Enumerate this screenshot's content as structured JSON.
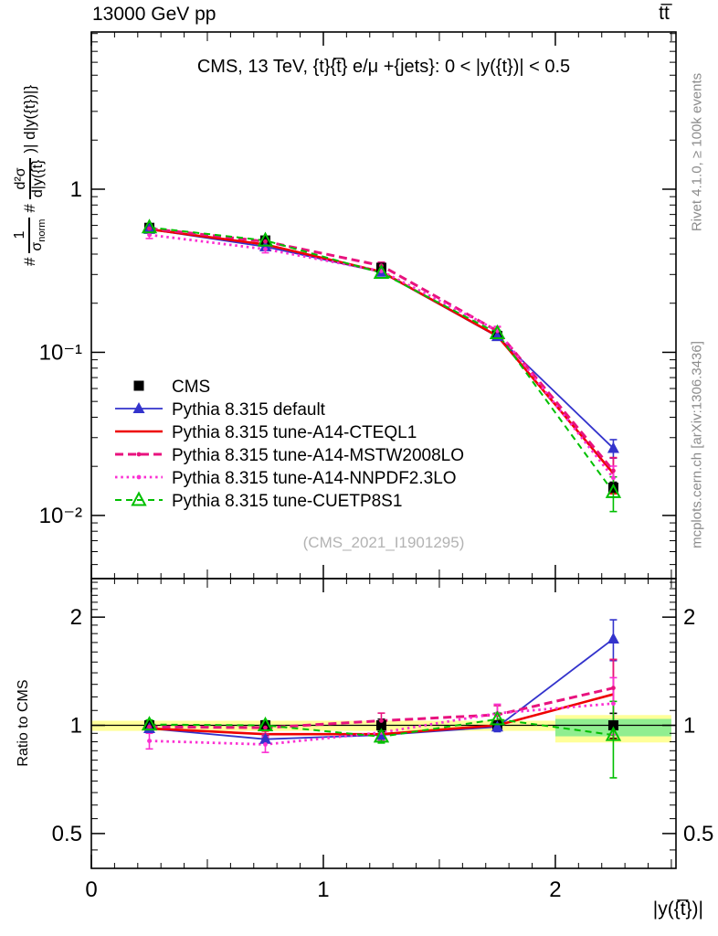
{
  "header": {
    "left_title": "13000 GeV pp",
    "right_title": "tt̅"
  },
  "side_notes": {
    "generator": "Rivet 4.1.0, ≥ 100k events",
    "source": "mcplots.cern.ch [arXiv:1306.3436]"
  },
  "y_axis_label": {
    "pre": "#",
    "frac1_num": "1",
    "frac1_den_base": "σ",
    "frac1_den_sub": "norm",
    "mid": "#",
    "frac2_num": "d²σ",
    "frac2_den": "d|y({t̅}",
    "post": ")| d|y({t})|}"
  },
  "chart_data": {
    "type": "line",
    "title": "CMS, 13 TeV, {t}{t̅} e/μ +{jets}: 0 < |y({t})| < 0.5",
    "watermark": "(CMS_2021_I1901295)",
    "xlabel": "|y({t̅})|",
    "x": [
      0.25,
      0.75,
      1.25,
      1.75,
      2.25
    ],
    "x_bin_width": 0.5,
    "xlim": [
      0,
      2.52
    ],
    "xtick_values": [
      0,
      1,
      2
    ],
    "xtick_labels": [
      "0",
      "1",
      "2"
    ],
    "main_panel": {
      "yscale": "log",
      "ylim": [
        0.0041,
        9.2
      ],
      "ytick_values": [
        1,
        0.1,
        0.01
      ],
      "ytick_labels": [
        "1",
        "10⁻¹",
        "10⁻²"
      ]
    },
    "ratio_panel": {
      "ylabel": "Ratio to CMS",
      "yscale": "log",
      "ylim": [
        0.4,
        2.56
      ],
      "ytick_values": [
        2,
        1,
        0.5
      ],
      "ytick_labels": [
        "2",
        "1",
        "0.5"
      ],
      "bands": [
        {
          "x0": 0.0,
          "x1": 2.0,
          "lo": 0.965,
          "hi": 1.03,
          "color": "#ffff99"
        },
        {
          "x0": 2.0,
          "x1": 2.5,
          "lo": 0.896,
          "hi": 1.068,
          "color": "#ffff99"
        },
        {
          "x0": 2.0,
          "x1": 2.5,
          "lo": 0.932,
          "hi": 1.042,
          "color": "#90ee90"
        }
      ]
    },
    "series": [
      {
        "name": "CMS",
        "color": "#000000",
        "line": "none",
        "width": 0,
        "marker": "square",
        "values": [
          0.58,
          0.485,
          0.33,
          0.126,
          0.0148
        ],
        "ratio": [
          1,
          1,
          1,
          1,
          1
        ],
        "err_frac": [
          0.02,
          0.02,
          0.04,
          0.03,
          0.08
        ]
      },
      {
        "name": "Pythia 8.315 default",
        "color": "#3333cc",
        "line": "solid",
        "width": 1.8,
        "marker": "triangle",
        "values": [
          0.568,
          0.444,
          0.31,
          0.125,
          0.0258
        ],
        "ratio": [
          0.98,
          0.915,
          0.94,
          0.99,
          1.74
        ],
        "err_frac": [
          0.02,
          0.02,
          0.03,
          0.03,
          0.13
        ]
      },
      {
        "name": "Pythia 8.315 tune-A14-CTEQL1",
        "color": "#ee0000",
        "line": "solid",
        "width": 2.6,
        "marker": "none",
        "values": [
          0.568,
          0.458,
          0.312,
          0.126,
          0.0181
        ],
        "ratio": [
          0.98,
          0.945,
          0.945,
          1.0,
          1.22
        ],
        "err_frac": [
          0.02,
          0.02,
          0.03,
          0.03,
          0.25
        ]
      },
      {
        "name": "Pythia 8.315 tune-A14-MSTW2008LO",
        "color": "#e8127e",
        "line": "dashed",
        "width": 3,
        "marker": "dot",
        "values": [
          0.574,
          0.478,
          0.34,
          0.135,
          0.0188
        ],
        "ratio": [
          0.99,
          0.985,
          1.03,
          1.07,
          1.27
        ],
        "err_frac": [
          0.04,
          0.04,
          0.05,
          0.06,
          0.2
        ]
      },
      {
        "name": "Pythia 8.315 tune-A14-NNPDF2.3LO",
        "color": "#fb2fd2",
        "line": "dotted",
        "width": 2.8,
        "marker": "dot",
        "values": [
          0.525,
          0.429,
          0.315,
          0.136,
          0.017
        ],
        "ratio": [
          0.905,
          0.885,
          0.955,
          1.08,
          1.15
        ],
        "err_frac": [
          0.05,
          0.05,
          0.05,
          0.06,
          0.18
        ]
      },
      {
        "name": "Pythia 8.315 tune-CUETP8S1",
        "color": "#00bf00",
        "line": "dashed",
        "width": 2,
        "dash": "7,5",
        "marker": "triangle-open",
        "values": [
          0.583,
          0.485,
          0.307,
          0.131,
          0.0139
        ],
        "ratio": [
          1.005,
          1.0,
          0.93,
          1.04,
          0.94
        ],
        "err_frac": [
          0.03,
          0.03,
          0.04,
          0.04,
          0.24
        ]
      }
    ],
    "legend_position": "middle-left"
  }
}
